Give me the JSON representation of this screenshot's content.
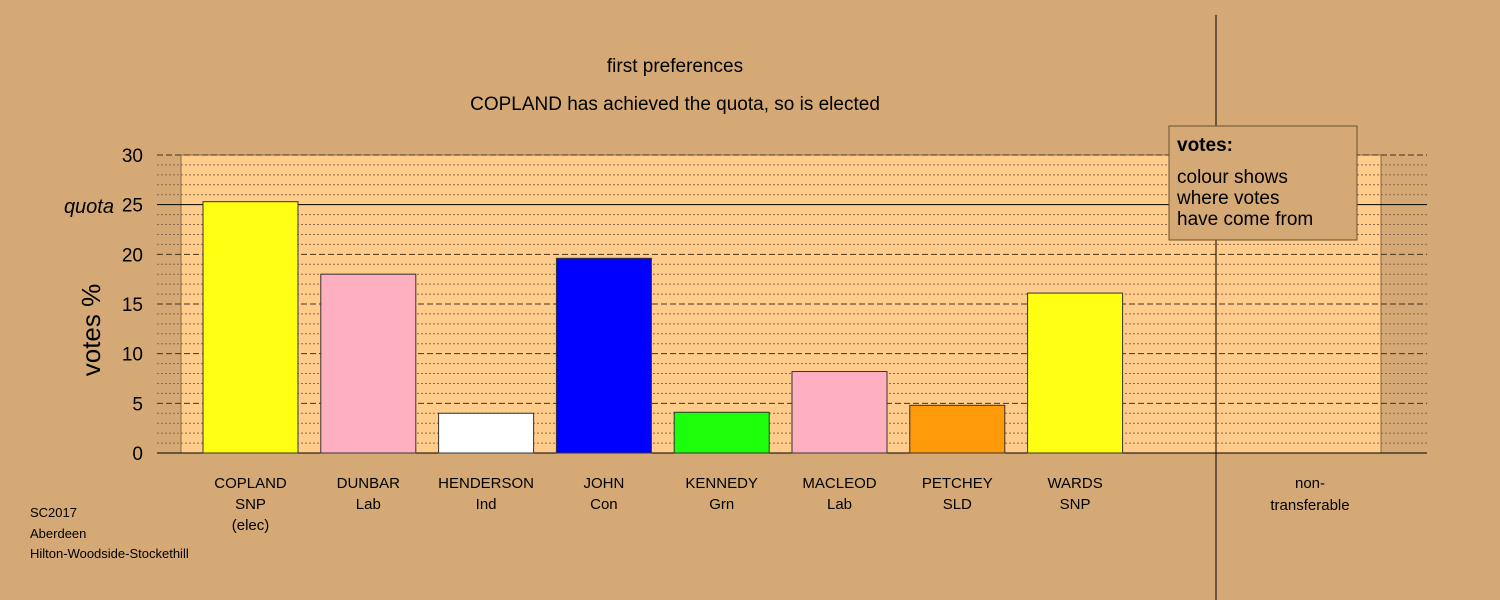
{
  "chart_data": {
    "type": "bar",
    "title": "first preferences",
    "subtitle": "COPLAND has achieved the quota, so is elected",
    "ylabel": "votes %",
    "ylim": [
      0,
      30
    ],
    "yticks": [
      "0",
      "5",
      "10",
      "15",
      "20",
      "25",
      "30"
    ],
    "quota_label": "quota",
    "quota": 25,
    "grid": true,
    "categories": [
      {
        "name": "COPLAND",
        "party": "SNP",
        "note": "(elec)"
      },
      {
        "name": "DUNBAR",
        "party": "Lab"
      },
      {
        "name": "HENDERSON",
        "party": "Ind"
      },
      {
        "name": "JOHN",
        "party": "Con"
      },
      {
        "name": "KENNEDY",
        "party": "Grn"
      },
      {
        "name": "MACLEOD",
        "party": "Lab"
      },
      {
        "name": "PETCHEY",
        "party": "SLD"
      },
      {
        "name": "WARDS",
        "party": "SNP"
      }
    ],
    "values": [
      25.3,
      18.0,
      4.0,
      19.6,
      4.1,
      8.2,
      4.8,
      16.1
    ],
    "colors": [
      "#ffff14",
      "#ffb0c0",
      "#ffffff",
      "#0000ff",
      "#1dff0a",
      "#ffb0c0",
      "#ff9a0a",
      "#ffff14"
    ],
    "nontransferable": {
      "label1": "non-",
      "label2": "transferable",
      "value": 0
    },
    "legend": {
      "title": "votes:",
      "lines": [
        "colour shows",
        "where votes",
        "have come from"
      ],
      "placement": "top-right"
    }
  },
  "footer": {
    "line1": "SC2017",
    "line2": "Aberdeen",
    "line3": "Hilton-Woodside-Stockethill"
  }
}
